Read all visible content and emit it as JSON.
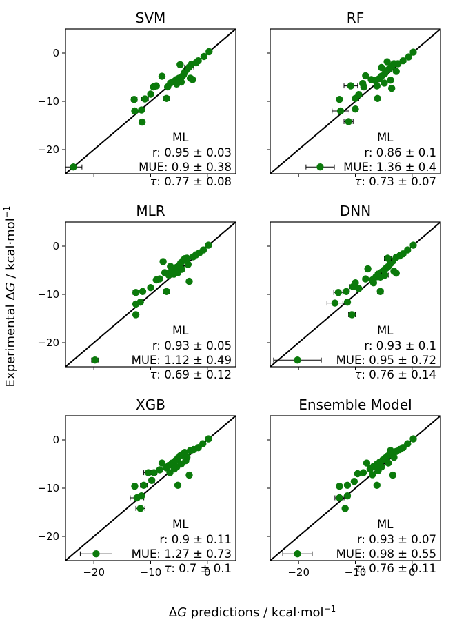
{
  "figure": {
    "ylabel_prefix": "Experimental Δ",
    "ylabel_var": "G",
    "ylabel_suffix": " / kcal·mol",
    "ylabel_sup": "−1",
    "xlabel_prefix": "Δ",
    "xlabel_var": "G",
    "xlabel_suffix": " predictions / kcal·mol",
    "xlabel_sup": "−1",
    "x_ticks": [
      -20,
      -10,
      0
    ],
    "x_tick_labels": [
      "−20",
      "−10",
      "0"
    ],
    "y_ticks": [
      0,
      -10,
      -20
    ],
    "y_tick_labels": [
      "0",
      "−10",
      "−20"
    ],
    "xlim": [
      -25,
      5
    ],
    "ylim": [
      -25,
      5
    ],
    "marker_color": "#0b7a0b",
    "line_color": "#000000"
  },
  "chart_data": [
    {
      "type": "scatter",
      "title": "SVM",
      "stats": {
        "header": "ML",
        "r": "r: 0.95 ± 0.03",
        "mue": "MUE: 0.9 ± 0.38",
        "tau_prefix": "τ",
        "tau": ": 0.77 ± 0.08"
      },
      "points": [
        {
          "x": -23.6,
          "y": -23.6,
          "xerr": 1.5
        },
        {
          "x": -11.5,
          "y": -14.3,
          "xerr": 0.4
        },
        {
          "x": -12.8,
          "y": -12.0,
          "xerr": 0
        },
        {
          "x": -11.6,
          "y": -11.8,
          "xerr": 0
        },
        {
          "x": -12.9,
          "y": -9.6,
          "xerr": 0.5
        },
        {
          "x": -11.0,
          "y": -9.5,
          "xerr": 0.6
        },
        {
          "x": -7.2,
          "y": -9.4,
          "xerr": 0.5
        },
        {
          "x": -10.0,
          "y": -8.5,
          "xerr": 0
        },
        {
          "x": -9.5,
          "y": -7.0,
          "xerr": 0
        },
        {
          "x": -9.0,
          "y": -6.8,
          "xerr": 0
        },
        {
          "x": -8.0,
          "y": -4.8,
          "xerr": 0
        },
        {
          "x": -7.0,
          "y": -7.0,
          "xerr": 0
        },
        {
          "x": -6.5,
          "y": -6.2,
          "xerr": 0
        },
        {
          "x": -6.0,
          "y": -5.9,
          "xerr": 0
        },
        {
          "x": -5.5,
          "y": -5.5,
          "xerr": 0
        },
        {
          "x": -5.0,
          "y": -5.2,
          "xerr": 0
        },
        {
          "x": -4.5,
          "y": -4.9,
          "xerr": 0
        },
        {
          "x": -4.2,
          "y": -4.5,
          "xerr": 0
        },
        {
          "x": -4.0,
          "y": -4.0,
          "xerr": 0
        },
        {
          "x": -3.8,
          "y": -3.6,
          "xerr": 0
        },
        {
          "x": -3.5,
          "y": -3.2,
          "xerr": 0
        },
        {
          "x": -3.2,
          "y": -2.9,
          "xerr": 0.8
        },
        {
          "x": -3.0,
          "y": -5.2,
          "xerr": 0
        },
        {
          "x": -2.6,
          "y": -5.5,
          "xerr": 0
        },
        {
          "x": -4.6,
          "y": -6.0,
          "xerr": 0
        },
        {
          "x": -5.4,
          "y": -6.4,
          "xerr": 0
        },
        {
          "x": -2.8,
          "y": -2.3,
          "xerr": 0
        },
        {
          "x": -2.0,
          "y": -2.0,
          "xerr": 0
        },
        {
          "x": -1.6,
          "y": -1.6,
          "xerr": 0
        },
        {
          "x": -0.6,
          "y": -0.7,
          "xerr": 0
        },
        {
          "x": 0.3,
          "y": 0.3,
          "xerr": 0
        },
        {
          "x": -4.8,
          "y": -2.4,
          "xerr": 0
        }
      ]
    },
    {
      "type": "scatter",
      "title": "RF",
      "stats": {
        "header": "ML",
        "r": "r: 0.86 ± 0.1",
        "mue": "MUE: 1.36 ± 0.4",
        "tau_prefix": "τ",
        "tau": ": 0.73 ± 0.07"
      },
      "points": [
        {
          "x": -16.2,
          "y": -23.6,
          "xerr": 2.5
        },
        {
          "x": -11.2,
          "y": -14.2,
          "xerr": 0.8
        },
        {
          "x": -12.6,
          "y": -12.0,
          "xerr": 1.5
        },
        {
          "x": -10.0,
          "y": -11.6,
          "xerr": 0
        },
        {
          "x": -12.8,
          "y": -9.6,
          "xerr": 0
        },
        {
          "x": -10.0,
          "y": -9.4,
          "xerr": 0.6
        },
        {
          "x": -6.1,
          "y": -9.4,
          "xerr": 0.4
        },
        {
          "x": -9.4,
          "y": -8.6,
          "xerr": 0
        },
        {
          "x": -10.8,
          "y": -6.8,
          "xerr": 1.2
        },
        {
          "x": -8.5,
          "y": -7.0,
          "xerr": 0.5
        },
        {
          "x": -8.7,
          "y": -6.3,
          "xerr": 0
        },
        {
          "x": -8.2,
          "y": -4.7,
          "xerr": 0
        },
        {
          "x": -7.2,
          "y": -5.5,
          "xerr": 0
        },
        {
          "x": -6.5,
          "y": -5.7,
          "xerr": 0
        },
        {
          "x": -5.8,
          "y": -5.3,
          "xerr": 0
        },
        {
          "x": -5.4,
          "y": -4.8,
          "xerr": 0
        },
        {
          "x": -4.8,
          "y": -4.2,
          "xerr": 0
        },
        {
          "x": -4.5,
          "y": -3.6,
          "xerr": 0
        },
        {
          "x": -4.0,
          "y": -3.2,
          "xerr": 0
        },
        {
          "x": -3.6,
          "y": -2.7,
          "xerr": 0
        },
        {
          "x": -3.2,
          "y": -2.2,
          "xerr": 0
        },
        {
          "x": -3.6,
          "y": -7.3,
          "xerr": 0.4
        },
        {
          "x": -4.9,
          "y": -6.2,
          "xerr": 0
        },
        {
          "x": -3.8,
          "y": -5.6,
          "xerr": 0
        },
        {
          "x": -2.8,
          "y": -3.8,
          "xerr": 0
        },
        {
          "x": -2.5,
          "y": -2.2,
          "xerr": 0
        },
        {
          "x": -4.4,
          "y": -1.8,
          "xerr": 0
        },
        {
          "x": -1.6,
          "y": -1.6,
          "xerr": 0
        },
        {
          "x": -0.6,
          "y": -0.8,
          "xerr": 0
        },
        {
          "x": 0.2,
          "y": 0.2,
          "xerr": 0
        },
        {
          "x": -5.4,
          "y": -3.0,
          "xerr": 0
        },
        {
          "x": -6.2,
          "y": -6.8,
          "xerr": 0
        }
      ]
    },
    {
      "type": "scatter",
      "title": "MLR",
      "stats": {
        "header": "ML",
        "r": "r: 0.93 ± 0.05",
        "mue": "MUE: 1.12 ± 0.49",
        "tau_prefix": "τ",
        "tau": ": 0.69 ± 0.12"
      },
      "points": [
        {
          "x": -19.8,
          "y": -23.6,
          "xerr": 0.6
        },
        {
          "x": -12.6,
          "y": -14.2,
          "xerr": 0
        },
        {
          "x": -12.6,
          "y": -12.0,
          "xerr": 0
        },
        {
          "x": -11.8,
          "y": -11.6,
          "xerr": 0
        },
        {
          "x": -12.6,
          "y": -9.6,
          "xerr": 0.5
        },
        {
          "x": -11.4,
          "y": -9.4,
          "xerr": 0
        },
        {
          "x": -7.2,
          "y": -9.4,
          "xerr": 0.5
        },
        {
          "x": -10.0,
          "y": -8.6,
          "xerr": 0
        },
        {
          "x": -9.0,
          "y": -7.0,
          "xerr": 0
        },
        {
          "x": -8.4,
          "y": -6.8,
          "xerr": 0
        },
        {
          "x": -7.5,
          "y": -5.5,
          "xerr": 0
        },
        {
          "x": -6.8,
          "y": -6.0,
          "xerr": 0
        },
        {
          "x": -6.3,
          "y": -5.2,
          "xerr": 0
        },
        {
          "x": -5.8,
          "y": -4.8,
          "xerr": 0
        },
        {
          "x": -5.4,
          "y": -4.4,
          "xerr": 0
        },
        {
          "x": -5.0,
          "y": -4.0,
          "xerr": 0
        },
        {
          "x": -4.7,
          "y": -3.5,
          "xerr": 0
        },
        {
          "x": -4.3,
          "y": -3.0,
          "xerr": 0
        },
        {
          "x": -4.0,
          "y": -2.6,
          "xerr": 0
        },
        {
          "x": -3.6,
          "y": -2.5,
          "xerr": 0
        },
        {
          "x": -3.2,
          "y": -7.3,
          "xerr": 0.4
        },
        {
          "x": -3.4,
          "y": -3.8,
          "xerr": 0
        },
        {
          "x": -5.9,
          "y": -5.8,
          "xerr": 0
        },
        {
          "x": -4.5,
          "y": -4.8,
          "xerr": 0
        },
        {
          "x": -6.5,
          "y": -4.2,
          "xerr": 0
        },
        {
          "x": -2.5,
          "y": -2.2,
          "xerr": 0
        },
        {
          "x": -2.0,
          "y": -1.8,
          "xerr": 0
        },
        {
          "x": -1.4,
          "y": -1.4,
          "xerr": 0
        },
        {
          "x": -0.7,
          "y": -0.8,
          "xerr": 0
        },
        {
          "x": 0.2,
          "y": 0.2,
          "xerr": 0
        },
        {
          "x": -7.8,
          "y": -3.2,
          "xerr": 0
        },
        {
          "x": -5.2,
          "y": -5.5,
          "xerr": 0
        }
      ]
    },
    {
      "type": "scatter",
      "title": "DNN",
      "stats": {
        "header": "ML",
        "r": "r: 0.93 ± 0.1",
        "mue": "MUE: 0.95 ± 0.72",
        "tau_prefix": "τ",
        "tau": ": 0.76 ± 0.14"
      },
      "points": [
        {
          "x": -20.2,
          "y": -23.6,
          "xerr": 4.2
        },
        {
          "x": -10.6,
          "y": -14.2,
          "xerr": 0.6
        },
        {
          "x": -13.6,
          "y": -11.8,
          "xerr": 1.4
        },
        {
          "x": -11.4,
          "y": -11.6,
          "xerr": 0
        },
        {
          "x": -13.0,
          "y": -9.6,
          "xerr": 0.8
        },
        {
          "x": -11.6,
          "y": -9.4,
          "xerr": 0
        },
        {
          "x": -5.6,
          "y": -9.4,
          "xerr": 0.5
        },
        {
          "x": -10.4,
          "y": -8.4,
          "xerr": 0.6
        },
        {
          "x": -10.0,
          "y": -7.6,
          "xerr": 0
        },
        {
          "x": -8.2,
          "y": -6.8,
          "xerr": 0
        },
        {
          "x": -7.8,
          "y": -4.7,
          "xerr": 0
        },
        {
          "x": -7.0,
          "y": -7.0,
          "xerr": 0
        },
        {
          "x": -6.4,
          "y": -6.4,
          "xerr": 0
        },
        {
          "x": -6.0,
          "y": -5.8,
          "xerr": 0
        },
        {
          "x": -5.4,
          "y": -5.4,
          "xerr": 0
        },
        {
          "x": -5.0,
          "y": -5.0,
          "xerr": 0
        },
        {
          "x": -4.6,
          "y": -4.6,
          "xerr": 0
        },
        {
          "x": -4.2,
          "y": -4.2,
          "xerr": 0
        },
        {
          "x": -3.8,
          "y": -3.6,
          "xerr": 0
        },
        {
          "x": -3.4,
          "y": -3.1,
          "xerr": 0
        },
        {
          "x": -4.3,
          "y": -2.5,
          "xerr": 0.6
        },
        {
          "x": -3.2,
          "y": -5.2,
          "xerr": 0
        },
        {
          "x": -2.8,
          "y": -5.6,
          "xerr": 0
        },
        {
          "x": -4.8,
          "y": -6.0,
          "xerr": 0.6
        },
        {
          "x": -5.6,
          "y": -6.4,
          "xerr": 0
        },
        {
          "x": -2.8,
          "y": -2.3,
          "xerr": 0
        },
        {
          "x": -2.2,
          "y": -2.0,
          "xerr": 0
        },
        {
          "x": -1.6,
          "y": -1.6,
          "xerr": 0
        },
        {
          "x": -0.8,
          "y": -0.8,
          "xerr": 0
        },
        {
          "x": 0.2,
          "y": 0.2,
          "xerr": 0
        },
        {
          "x": -9.4,
          "y": -8.8,
          "xerr": 0
        },
        {
          "x": -6.8,
          "y": -7.6,
          "xerr": 0
        }
      ]
    },
    {
      "type": "scatter",
      "title": "XGB",
      "stats": {
        "header": "ML",
        "r": "r: 0.9 ± 0.11",
        "mue": "MUE: 1.27 ± 0.73",
        "tau_prefix": "τ",
        "tau": ": 0.7 ± 0.1"
      },
      "points": [
        {
          "x": -19.6,
          "y": -23.6,
          "xerr": 2.8
        },
        {
          "x": -11.8,
          "y": -14.2,
          "xerr": 0.8
        },
        {
          "x": -12.4,
          "y": -12.0,
          "xerr": 1.2
        },
        {
          "x": -11.6,
          "y": -11.6,
          "xerr": 0
        },
        {
          "x": -12.8,
          "y": -9.6,
          "xerr": 0
        },
        {
          "x": -11.2,
          "y": -9.4,
          "xerr": 0.6
        },
        {
          "x": -5.2,
          "y": -9.4,
          "xerr": 0
        },
        {
          "x": -9.8,
          "y": -8.4,
          "xerr": 0.5
        },
        {
          "x": -10.4,
          "y": -6.8,
          "xerr": 0.8
        },
        {
          "x": -9.4,
          "y": -6.8,
          "xerr": 0.5
        },
        {
          "x": -8.4,
          "y": -6.2,
          "xerr": 0
        },
        {
          "x": -8.0,
          "y": -4.8,
          "xerr": 0
        },
        {
          "x": -7.2,
          "y": -5.8,
          "xerr": 0
        },
        {
          "x": -6.8,
          "y": -5.3,
          "xerr": 0
        },
        {
          "x": -6.2,
          "y": -4.8,
          "xerr": 0
        },
        {
          "x": -5.6,
          "y": -4.3,
          "xerr": 0
        },
        {
          "x": -5.2,
          "y": -3.8,
          "xerr": 0
        },
        {
          "x": -4.8,
          "y": -3.3,
          "xerr": 0
        },
        {
          "x": -4.4,
          "y": -3.0,
          "xerr": 0
        },
        {
          "x": -4.0,
          "y": -2.6,
          "xerr": 0
        },
        {
          "x": -3.2,
          "y": -7.3,
          "xerr": 0.4
        },
        {
          "x": -3.6,
          "y": -3.6,
          "xerr": 0
        },
        {
          "x": -5.4,
          "y": -5.6,
          "xerr": 0
        },
        {
          "x": -6.6,
          "y": -6.8,
          "xerr": 0
        },
        {
          "x": -3.0,
          "y": -2.2,
          "xerr": 0
        },
        {
          "x": -2.4,
          "y": -2.0,
          "xerr": 0
        },
        {
          "x": -1.6,
          "y": -1.6,
          "xerr": 0
        },
        {
          "x": -0.8,
          "y": -0.8,
          "xerr": 0
        },
        {
          "x": 0.2,
          "y": 0.2,
          "xerr": 0
        },
        {
          "x": -4.6,
          "y": -5.0,
          "xerr": 0
        },
        {
          "x": -3.8,
          "y": -4.3,
          "xerr": 0
        },
        {
          "x": -5.8,
          "y": -6.0,
          "xerr": 0
        }
      ]
    },
    {
      "type": "scatter",
      "title": "Ensemble Model",
      "stats": {
        "header": "ML",
        "r": "r: 0.93 ± 0.07",
        "mue": "MUE: 0.98 ± 0.55",
        "tau_prefix": "τ",
        "tau": ": 0.76 ± 0.11"
      },
      "points": [
        {
          "x": -20.2,
          "y": -23.6,
          "xerr": 2.6
        },
        {
          "x": -11.8,
          "y": -14.2,
          "xerr": 0.4
        },
        {
          "x": -12.8,
          "y": -12.0,
          "xerr": 0.8
        },
        {
          "x": -11.4,
          "y": -11.6,
          "xerr": 0
        },
        {
          "x": -12.8,
          "y": -9.6,
          "xerr": 0.6
        },
        {
          "x": -11.4,
          "y": -9.4,
          "xerr": 0
        },
        {
          "x": -6.2,
          "y": -9.4,
          "xerr": 0.4
        },
        {
          "x": -10.2,
          "y": -8.6,
          "xerr": 0.4
        },
        {
          "x": -9.6,
          "y": -7.0,
          "xerr": 0.4
        },
        {
          "x": -8.6,
          "y": -6.8,
          "xerr": 0
        },
        {
          "x": -8.0,
          "y": -4.8,
          "xerr": 0
        },
        {
          "x": -7.4,
          "y": -6.0,
          "xerr": 0
        },
        {
          "x": -6.8,
          "y": -5.5,
          "xerr": 0
        },
        {
          "x": -6.2,
          "y": -5.0,
          "xerr": 0
        },
        {
          "x": -5.7,
          "y": -4.6,
          "xerr": 0
        },
        {
          "x": -5.2,
          "y": -4.2,
          "xerr": 0
        },
        {
          "x": -4.8,
          "y": -3.8,
          "xerr": 0
        },
        {
          "x": -4.4,
          "y": -3.4,
          "xerr": 0
        },
        {
          "x": -4.0,
          "y": -3.0,
          "xerr": 0
        },
        {
          "x": -3.6,
          "y": -2.6,
          "xerr": 0
        },
        {
          "x": -3.4,
          "y": -7.3,
          "xerr": 0.3
        },
        {
          "x": -3.2,
          "y": -3.6,
          "xerr": 0
        },
        {
          "x": -5.4,
          "y": -5.6,
          "xerr": 0
        },
        {
          "x": -4.2,
          "y": -4.8,
          "xerr": 0
        },
        {
          "x": -6.0,
          "y": -6.4,
          "xerr": 0
        },
        {
          "x": -2.8,
          "y": -2.4,
          "xerr": 0
        },
        {
          "x": -2.2,
          "y": -2.0,
          "xerr": 0
        },
        {
          "x": -1.6,
          "y": -1.6,
          "xerr": 0
        },
        {
          "x": -0.8,
          "y": -0.8,
          "xerr": 0
        },
        {
          "x": 0.2,
          "y": 0.2,
          "xerr": 0
        },
        {
          "x": -3.8,
          "y": -2.2,
          "xerr": 0
        },
        {
          "x": -7.0,
          "y": -7.2,
          "xerr": 0
        }
      ]
    }
  ]
}
